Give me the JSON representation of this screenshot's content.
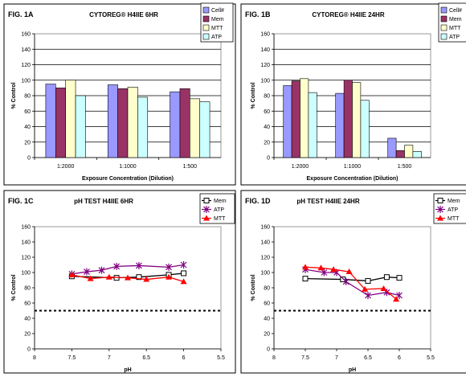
{
  "chart_data": [
    {
      "id": "1A",
      "type": "bar",
      "fig_label": "FIG. 1A",
      "title": "CYTOREG® H4IIE 6HR",
      "xlabel": "Exposure Concentration (Dilution)",
      "ylabel": "% Control",
      "ylim": [
        0,
        160
      ],
      "yticks": [
        "0",
        "20",
        "40",
        "60",
        "80",
        "100",
        "120",
        "140",
        "160"
      ],
      "grid": true,
      "legend_position": "top-right",
      "categories": [
        "1:2000",
        "1:1000",
        "1:500"
      ],
      "series": [
        {
          "name": "Cell#",
          "color": "#9999ff",
          "values": [
            95,
            94,
            85
          ]
        },
        {
          "name": "Mem",
          "color": "#993366",
          "values": [
            90,
            89,
            89
          ]
        },
        {
          "name": "MTT",
          "color": "#ffffcc",
          "values": [
            100,
            91,
            76
          ]
        },
        {
          "name": "ATP",
          "color": "#ccffff",
          "values": [
            80,
            78,
            72
          ]
        }
      ]
    },
    {
      "id": "1B",
      "type": "bar",
      "fig_label": "FIG. 1B",
      "title": "CYTOREG® H4IIE 24HR",
      "xlabel": "Exposure Concentration (Dilution)",
      "ylabel": "% Control",
      "ylim": [
        0,
        160
      ],
      "yticks": [
        "0",
        "20",
        "40",
        "60",
        "80",
        "100",
        "120",
        "140",
        "160"
      ],
      "grid": true,
      "legend_position": "top-right",
      "categories": [
        "1:2000",
        "1:1000",
        "1:500"
      ],
      "series": [
        {
          "name": "Cell#",
          "color": "#9999ff",
          "values": [
            93,
            83,
            25
          ]
        },
        {
          "name": "Mem",
          "color": "#993366",
          "values": [
            99,
            100,
            9
          ]
        },
        {
          "name": "MTT",
          "color": "#ffffcc",
          "values": [
            102,
            97,
            16
          ]
        },
        {
          "name": "ATP",
          "color": "#ccffff",
          "values": [
            84,
            74,
            8
          ]
        }
      ]
    },
    {
      "id": "1C",
      "type": "line",
      "fig_label": "FIG. 1C",
      "title": "pH TEST H4IIE 6HR",
      "xlabel": "pH",
      "ylabel": "% Control",
      "xlim": [
        8,
        5.5
      ],
      "xticks": [
        "8",
        "7.5",
        "7",
        "6.5",
        "6",
        "5.5"
      ],
      "ylim": [
        0,
        160
      ],
      "yticks": [
        "0",
        "20",
        "40",
        "60",
        "80",
        "100",
        "120",
        "140",
        "160"
      ],
      "grid": false,
      "reference_line": 50,
      "legend_position": "top-right",
      "series": [
        {
          "name": "Mem",
          "color": "#000000",
          "marker": "square",
          "x": [
            7.5,
            6.9,
            6.6,
            6.2,
            6.0
          ],
          "y": [
            95,
            93,
            94,
            97,
            99
          ]
        },
        {
          "name": "ATP",
          "color": "#800080",
          "marker": "star",
          "x": [
            7.5,
            7.3,
            7.1,
            6.9,
            6.6,
            6.2,
            6.0
          ],
          "y": [
            98,
            101,
            103,
            108,
            109,
            107,
            110
          ]
        },
        {
          "name": "MTT",
          "color": "#ff0000",
          "marker": "triangle",
          "x": [
            7.5,
            7.25,
            7.0,
            6.75,
            6.5,
            6.2,
            6.0
          ],
          "y": [
            97,
            92,
            94,
            93,
            91,
            94,
            88
          ]
        }
      ]
    },
    {
      "id": "1D",
      "type": "line",
      "fig_label": "FIG. 1D",
      "title": "pH TEST H4IIE 24HR",
      "xlabel": "pH",
      "ylabel": "% Control",
      "xlim": [
        8,
        5.5
      ],
      "xticks": [
        "8",
        "7.5",
        "7",
        "6.5",
        "6",
        "5.5"
      ],
      "ylim": [
        0,
        160
      ],
      "yticks": [
        "0",
        "20",
        "40",
        "60",
        "80",
        "100",
        "120",
        "140",
        "160"
      ],
      "grid": false,
      "reference_line": 50,
      "legend_position": "top-right",
      "series": [
        {
          "name": "Mem",
          "color": "#000000",
          "marker": "square",
          "x": [
            7.5,
            6.9,
            6.5,
            6.2,
            6.0
          ],
          "y": [
            92,
            91,
            89,
            94,
            93
          ]
        },
        {
          "name": "ATP",
          "color": "#800080",
          "marker": "star",
          "x": [
            7.5,
            7.2,
            7.0,
            6.85,
            6.5,
            6.2,
            6.0
          ],
          "y": [
            104,
            100,
            100,
            88,
            70,
            74,
            70
          ]
        },
        {
          "name": "MTT",
          "color": "#ff0000",
          "marker": "triangle",
          "x": [
            7.5,
            7.25,
            7.05,
            6.8,
            6.55,
            6.25,
            6.05
          ],
          "y": [
            107,
            106,
            104,
            101,
            78,
            79,
            65
          ]
        }
      ]
    }
  ]
}
